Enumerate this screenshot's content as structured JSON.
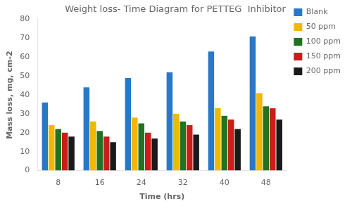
{
  "chart_data": {
    "type": "bar",
    "title": "Weight loss- Time Diagram for PETTEG  Inhibitor",
    "xlabel": "Time (hrs)",
    "ylabel": "Mass loss, mg, cm-2",
    "categories": [
      "8",
      "16",
      "24",
      "32",
      "40",
      "48"
    ],
    "series": [
      {
        "name": "Blank",
        "color": "#2878c8",
        "values": [
          36,
          44,
          49,
          52,
          63,
          71
        ]
      },
      {
        "name": "50 ppm",
        "color": "#f0b800",
        "values": [
          24,
          26,
          28,
          30,
          33,
          41
        ]
      },
      {
        "name": "100 ppm",
        "color": "#217321",
        "values": [
          22,
          21,
          25,
          26,
          29,
          34
        ]
      },
      {
        "name": "150 ppm",
        "color": "#cc1c1c",
        "values": [
          20,
          18,
          20,
          24,
          27,
          33
        ]
      },
      {
        "name": "200 ppm",
        "color": "#1a1a1a",
        "values": [
          18,
          15,
          17,
          19,
          22,
          27
        ]
      }
    ],
    "ylim": [
      0,
      80
    ],
    "yticks": [
      0,
      10,
      20,
      30,
      40,
      50,
      60,
      70,
      80
    ],
    "grid": false,
    "legend": "right"
  }
}
